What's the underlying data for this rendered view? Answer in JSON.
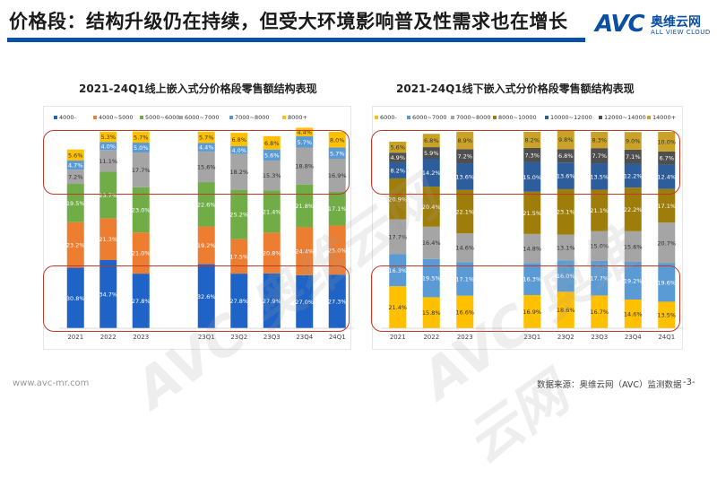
{
  "header": {
    "title": "价格段：结构升级仍在持续，但受大环境影响普及性需求也在增长",
    "logo_text": "AVC",
    "logo_cn": "奥维云网",
    "logo_en": "ALL VIEW CLOUD"
  },
  "footer": {
    "website": "www.avc-mr.com",
    "source": "数据来源：奥维云网（AVC）监测数据",
    "page": "-3-"
  },
  "watermark": "AVC 奥维云网",
  "colors": {
    "title_bar": "#0a4fa3",
    "highlight": "#c0392b"
  },
  "chart_data": [
    {
      "type": "bar",
      "stacked": true,
      "title": "2021-24Q1线上嵌入式分价格段零售额结构表现",
      "categories": [
        "2021",
        "2022",
        "2023",
        "23Q1",
        "23Q2",
        "23Q3",
        "23Q4",
        "24Q1"
      ],
      "ylim": [
        0,
        100
      ],
      "legend_position": "top",
      "series": [
        {
          "name": "4000-",
          "color": "#1f63c6",
          "values": [
            30.8,
            34.7,
            27.8,
            32.6,
            27.8,
            27.9,
            27.0,
            27.3
          ]
        },
        {
          "name": "4000~5000",
          "color": "#ed7d31",
          "values": [
            23.2,
            21.3,
            21.0,
            19.2,
            17.5,
            20.8,
            24.4,
            25.0
          ]
        },
        {
          "name": "5000~6000",
          "color": "#70ad47",
          "values": [
            19.5,
            23.7,
            23.0,
            22.6,
            25.2,
            21.4,
            21.8,
            17.1
          ]
        },
        {
          "name": "6000~7000",
          "color": "#a5a5a5",
          "values": [
            7.2,
            11.1,
            17.7,
            15.6,
            18.2,
            15.3,
            18.8,
            16.9
          ]
        },
        {
          "name": "7000~8000",
          "color": "#5b9bd5",
          "values": [
            4.7,
            4.0,
            5.0,
            4.4,
            4.0,
            5.6,
            5.7,
            5.7
          ]
        },
        {
          "name": "8000+",
          "color": "#ffc000",
          "values": [
            5.6,
            5.3,
            5.7,
            5.7,
            6.8,
            6.8,
            4.4,
            8.0
          ]
        }
      ]
    },
    {
      "type": "bar",
      "stacked": true,
      "title": "2021-24Q1线下嵌入式分价格段零售额结构表现",
      "categories": [
        "2021",
        "2022",
        "2023",
        "23Q1",
        "23Q2",
        "23Q3",
        "23Q4",
        "24Q1"
      ],
      "ylim": [
        0,
        100
      ],
      "legend_position": "top",
      "series": [
        {
          "name": "6000-",
          "color": "#ffc000",
          "values": [
            21.4,
            15.8,
            16.6,
            16.9,
            18.6,
            16.7,
            14.6,
            13.5
          ]
        },
        {
          "name": "6000~7000",
          "color": "#5b9bd5",
          "values": [
            16.3,
            19.5,
            17.1,
            16.3,
            16.0,
            17.7,
            19.2,
            19.6
          ]
        },
        {
          "name": "7000~8000",
          "color": "#a5a5a5",
          "values": [
            17.7,
            16.4,
            14.6,
            14.8,
            13.1,
            15.0,
            15.6,
            20.7
          ]
        },
        {
          "name": "8000~10000",
          "color": "#9e7d0a",
          "values": [
            20.9,
            20.4,
            22.1,
            21.5,
            23.1,
            21.1,
            22.2,
            17.1
          ]
        },
        {
          "name": "10000~12000",
          "color": "#2e5d9b",
          "values": [
            8.2,
            14.2,
            13.6,
            15.0,
            13.6,
            13.5,
            12.2,
            12.4
          ]
        },
        {
          "name": "12000~14000",
          "color": "#4f4f4f",
          "values": [
            4.9,
            5.9,
            7.2,
            7.3,
            6.8,
            7.7,
            7.1,
            6.7
          ]
        },
        {
          "name": "14000+",
          "color": "#c9a227",
          "values": [
            5.6,
            6.8,
            8.9,
            8.2,
            9.8,
            8.3,
            9.0,
            10.0
          ]
        }
      ]
    }
  ]
}
